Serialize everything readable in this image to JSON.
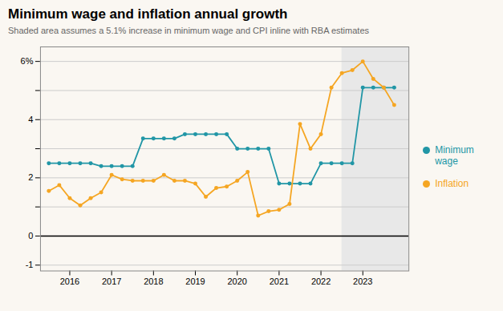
{
  "chart_data": {
    "type": "line",
    "title": "Minimum wage and inflation annual growth",
    "subtitle": "Shaded area assumes a 5.1% increase in minimum wage and CPI inline with RBA estimates",
    "x": [
      2015.5,
      2015.75,
      2016.0,
      2016.25,
      2016.5,
      2016.75,
      2017.0,
      2017.25,
      2017.5,
      2017.75,
      2018.0,
      2018.25,
      2018.5,
      2018.75,
      2019.0,
      2019.25,
      2019.5,
      2019.75,
      2020.0,
      2020.25,
      2020.5,
      2020.75,
      2021.0,
      2021.25,
      2021.5,
      2021.75,
      2022.0,
      2022.25,
      2022.5,
      2022.75,
      2023.0,
      2023.25,
      2023.5,
      2023.75
    ],
    "series": [
      {
        "name": "Minimum wage",
        "color": "#2196A6",
        "marker": "circle",
        "values": [
          2.5,
          2.5,
          2.5,
          2.5,
          2.5,
          2.4,
          2.4,
          2.4,
          2.4,
          3.35,
          3.35,
          3.35,
          3.35,
          3.5,
          3.5,
          3.5,
          3.5,
          3.5,
          3.0,
          3.0,
          3.0,
          3.0,
          1.8,
          1.8,
          1.8,
          1.8,
          2.5,
          2.5,
          2.5,
          2.5,
          5.1,
          5.1,
          5.1,
          5.1
        ]
      },
      {
        "name": "Inflation",
        "color": "#F5A623",
        "marker": "circle",
        "values": [
          1.55,
          1.75,
          1.3,
          1.05,
          1.3,
          1.5,
          2.1,
          1.95,
          1.9,
          1.9,
          1.9,
          2.1,
          1.9,
          1.9,
          1.8,
          1.35,
          1.65,
          1.7,
          1.9,
          2.2,
          0.7,
          0.85,
          0.9,
          1.1,
          3.85,
          3.0,
          3.5,
          5.1,
          5.6,
          5.7,
          6.0,
          5.4,
          5.1,
          4.5
        ]
      }
    ],
    "shaded_region": {
      "start": 2022.5,
      "end": 2024.1,
      "color": "#E8E8E8"
    },
    "hlines": [
      0
    ],
    "background_color": "#FAF7F2",
    "xlim": [
      2015.3,
      2024.1
    ],
    "xticks": [
      2016,
      2017,
      2018,
      2019,
      2020,
      2021,
      2022,
      2023
    ],
    "ylim": [
      -1.2,
      6.5
    ],
    "yticks": [
      -1,
      0,
      {
        "value": 1,
        "label": null
      },
      2,
      {
        "value": 3,
        "label": null
      },
      4,
      {
        "value": 5,
        "label": null
      },
      {
        "value": 6,
        "label": "6%"
      }
    ],
    "grid": "y",
    "legend": "right"
  }
}
